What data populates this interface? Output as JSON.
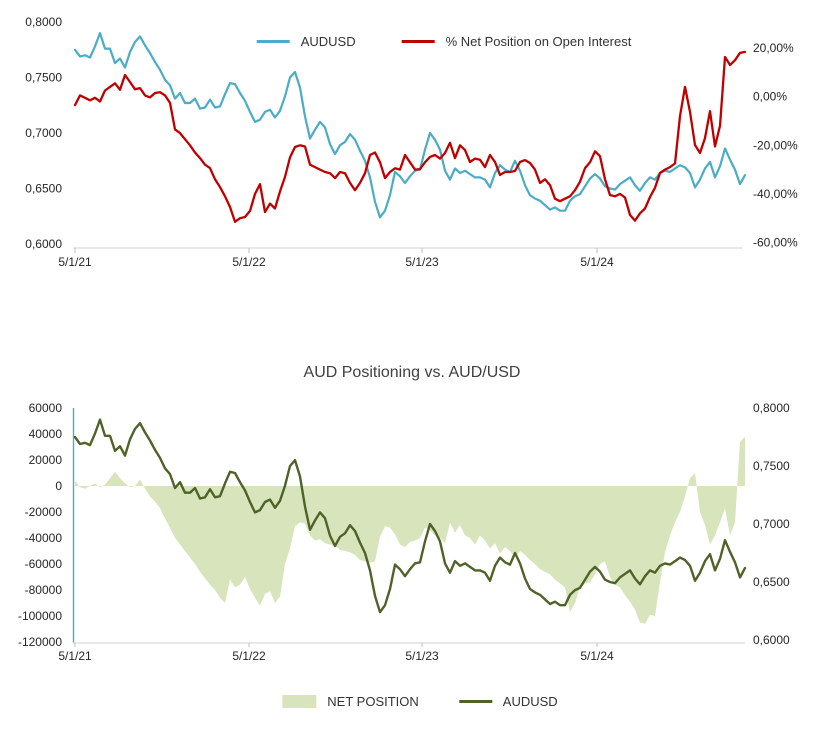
{
  "style": {
    "background": "#FFFFFF",
    "axis_line": "#D9D9D9",
    "tick": "#BFBFBF",
    "text": "#262626",
    "title_color": "#404040",
    "audusd_blue": "#4BACC6",
    "pct_red": "#C00000",
    "audusd_olive": "#4F6228",
    "net_area_green": "#D7E4BC"
  },
  "chart_data": [
    {
      "type": "line",
      "title": "",
      "legend_position": "top",
      "x_ticks": [
        "5/1/21",
        "5/1/22",
        "5/1/23",
        "5/1/24"
      ],
      "left_axis": {
        "ticks": [
          "0,8000",
          "0,7500",
          "0,7000",
          "0,6500",
          "0,6000"
        ],
        "range": [
          0.6,
          0.8
        ],
        "grid": false
      },
      "right_axis": {
        "ticks": [
          "20,00%",
          "0,00%",
          "-20,00%",
          "-40,00%",
          "-60,00%"
        ],
        "range": [
          -60,
          20
        ]
      },
      "series": [
        {
          "name": "AUDUSD",
          "axis": "left",
          "color": "#4BACC6",
          "values": [
            0.775,
            0.769,
            0.77,
            0.768,
            0.778,
            0.79,
            0.776,
            0.776,
            0.763,
            0.767,
            0.759,
            0.773,
            0.782,
            0.787,
            0.779,
            0.772,
            0.764,
            0.757,
            0.748,
            0.743,
            0.731,
            0.736,
            0.727,
            0.727,
            0.731,
            0.722,
            0.723,
            0.73,
            0.723,
            0.724,
            0.735,
            0.745,
            0.744,
            0.736,
            0.729,
            0.719,
            0.71,
            0.712,
            0.719,
            0.721,
            0.714,
            0.72,
            0.733,
            0.75,
            0.755,
            0.741,
            0.715,
            0.695,
            0.703,
            0.71,
            0.705,
            0.69,
            0.681,
            0.689,
            0.692,
            0.699,
            0.694,
            0.684,
            0.675,
            0.66,
            0.638,
            0.624,
            0.63,
            0.644,
            0.665,
            0.661,
            0.655,
            0.661,
            0.666,
            0.667,
            0.685,
            0.7,
            0.694,
            0.685,
            0.666,
            0.658,
            0.668,
            0.664,
            0.666,
            0.663,
            0.66,
            0.66,
            0.658,
            0.651,
            0.664,
            0.671,
            0.667,
            0.665,
            0.675,
            0.666,
            0.653,
            0.644,
            0.641,
            0.639,
            0.635,
            0.631,
            0.633,
            0.63,
            0.63,
            0.639,
            0.643,
            0.645,
            0.652,
            0.659,
            0.663,
            0.659,
            0.652,
            0.65,
            0.649,
            0.654,
            0.657,
            0.66,
            0.653,
            0.648,
            0.655,
            0.66,
            0.658,
            0.664,
            0.666,
            0.665,
            0.668,
            0.671,
            0.669,
            0.664,
            0.651,
            0.658,
            0.668,
            0.674,
            0.66,
            0.67,
            0.686,
            0.676,
            0.667,
            0.654,
            0.662
          ]
        },
        {
          "name": "% Net Position on Open Interest",
          "axis": "right",
          "color": "#C00000",
          "values": [
            -3.5,
            0.5,
            -0.5,
            -1.5,
            -0.5,
            -2.0,
            2.5,
            4.0,
            5.5,
            2.8,
            8.9,
            6.0,
            3.0,
            3.5,
            0.5,
            -0.3,
            1.5,
            1.8,
            0.5,
            -2.6,
            -13.5,
            -15.0,
            -17.5,
            -20.0,
            -23.0,
            -25.3,
            -28.0,
            -29.4,
            -34.0,
            -37.2,
            -41.0,
            -45.4,
            -51.5,
            -50.0,
            -49.5,
            -47.0,
            -40.0,
            -36.0,
            -47.5,
            -44.0,
            -46.0,
            -39.0,
            -33.0,
            -25.0,
            -20.7,
            -20.0,
            -20.5,
            -28.0,
            -29.0,
            -30.0,
            -31.0,
            -31.5,
            -33.5,
            -31.0,
            -31.5,
            -35.5,
            -38.5,
            -35.5,
            -31.5,
            -24.0,
            -23.0,
            -27.0,
            -33.5,
            -31.0,
            -29.5,
            -30.0,
            -24.0,
            -27.0,
            -30.0,
            -29.8,
            -27.0,
            -24.8,
            -24.0,
            -25.5,
            -23.2,
            -19.0,
            -25.3,
            -20.0,
            -22.0,
            -26.9,
            -25.5,
            -26.0,
            -29.0,
            -24.0,
            -26.9,
            -32.2,
            -31.0,
            -31.0,
            -30.6,
            -26.9,
            -26.1,
            -27.3,
            -30.0,
            -35.5,
            -34.0,
            -36.4,
            -42.0,
            -43.0,
            -42.0,
            -41.0,
            -38.5,
            -35.0,
            -29.4,
            -27.0,
            -22.5,
            -24.5,
            -34.0,
            -40.5,
            -41.0,
            -40.0,
            -41.5,
            -48.7,
            -51.0,
            -48.0,
            -46.0,
            -41.3,
            -37.5,
            -31.4,
            -30.0,
            -29.0,
            -27.5,
            -8.0,
            4.0,
            -6.3,
            -19.9,
            -23.2,
            -17.0,
            -6.0,
            -20.5,
            -12.0,
            16.3,
            13.0,
            15.0,
            18.0,
            18.4
          ]
        }
      ]
    },
    {
      "type": "area",
      "title": "AUD Positioning vs. AUD/USD",
      "legend_position": "bottom",
      "x_ticks": [
        "5/1/21",
        "5/1/22",
        "5/1/23",
        "5/1/24"
      ],
      "left_axis": {
        "ticks": [
          "60000",
          "40000",
          "20000",
          "0",
          "-20000",
          "-40000",
          "-60000",
          "-80000",
          "-100000",
          "-120000"
        ],
        "range": [
          -120000,
          60000
        ],
        "grid": false
      },
      "right_axis": {
        "ticks": [
          "0,8000",
          "0,7500",
          "0,7000",
          "0,6500",
          "0,6000"
        ],
        "range": [
          0.6,
          0.8
        ]
      },
      "series": [
        {
          "name": "NET POSITION",
          "type": "area",
          "axis": "left",
          "color": "#D7E4BC",
          "values": [
            4000,
            -1000,
            -2000,
            0,
            2000,
            -1000,
            1000,
            6000,
            11000,
            6000,
            2000,
            -1000,
            0,
            5000,
            -2000,
            -8000,
            -12000,
            -17000,
            -25000,
            -32000,
            -40000,
            -45000,
            -50000,
            -55000,
            -60000,
            -66000,
            -71000,
            -76000,
            -80000,
            -86000,
            -90000,
            -72000,
            -78000,
            -76000,
            -70000,
            -79000,
            -86000,
            -92000,
            -83000,
            -81000,
            -90000,
            -85000,
            -60000,
            -48000,
            -31000,
            -28000,
            -29000,
            -38000,
            -42000,
            -41000,
            -44000,
            -45000,
            -46000,
            -49000,
            -50000,
            -51000,
            -53000,
            -57000,
            -58000,
            -59000,
            -58000,
            -39000,
            -31000,
            -32000,
            -37000,
            -45000,
            -47000,
            -43000,
            -42000,
            -40000,
            -32000,
            -34000,
            -38000,
            -40000,
            -44000,
            -28000,
            -36000,
            -30000,
            -38000,
            -40000,
            -45000,
            -38000,
            -42000,
            -48000,
            -44000,
            -52000,
            -47000,
            -50000,
            -55000,
            -50000,
            -53000,
            -57000,
            -60000,
            -64000,
            -66000,
            -68000,
            -72000,
            -75000,
            -78000,
            -97000,
            -90000,
            -78000,
            -75000,
            -74000,
            -68000,
            -60000,
            -58000,
            -70000,
            -76000,
            -78000,
            -84000,
            -89000,
            -95000,
            -105000,
            -106000,
            -99000,
            -100000,
            -74000,
            -51000,
            -38000,
            -28000,
            -20000,
            -8000,
            6000,
            10000,
            -20000,
            -30000,
            -45000,
            -38000,
            -28000,
            -17000,
            -38000,
            -28000,
            34000,
            38000
          ]
        },
        {
          "name": "AUDUSD",
          "type": "line",
          "axis": "right",
          "color": "#4F6228",
          "values": [
            0.775,
            0.769,
            0.77,
            0.768,
            0.778,
            0.79,
            0.776,
            0.776,
            0.763,
            0.767,
            0.759,
            0.773,
            0.782,
            0.787,
            0.779,
            0.772,
            0.764,
            0.757,
            0.748,
            0.743,
            0.731,
            0.736,
            0.727,
            0.727,
            0.731,
            0.722,
            0.723,
            0.73,
            0.723,
            0.724,
            0.735,
            0.745,
            0.744,
            0.736,
            0.729,
            0.719,
            0.71,
            0.712,
            0.719,
            0.721,
            0.714,
            0.72,
            0.733,
            0.75,
            0.755,
            0.741,
            0.715,
            0.695,
            0.703,
            0.71,
            0.705,
            0.69,
            0.681,
            0.689,
            0.692,
            0.699,
            0.694,
            0.684,
            0.675,
            0.66,
            0.638,
            0.624,
            0.63,
            0.644,
            0.665,
            0.661,
            0.655,
            0.661,
            0.666,
            0.667,
            0.685,
            0.7,
            0.694,
            0.685,
            0.666,
            0.658,
            0.668,
            0.664,
            0.666,
            0.663,
            0.66,
            0.66,
            0.658,
            0.651,
            0.664,
            0.671,
            0.667,
            0.665,
            0.675,
            0.666,
            0.653,
            0.644,
            0.641,
            0.639,
            0.635,
            0.631,
            0.633,
            0.63,
            0.63,
            0.639,
            0.643,
            0.645,
            0.652,
            0.659,
            0.663,
            0.659,
            0.652,
            0.65,
            0.649,
            0.654,
            0.657,
            0.66,
            0.653,
            0.648,
            0.655,
            0.66,
            0.658,
            0.664,
            0.666,
            0.665,
            0.668,
            0.671,
            0.669,
            0.664,
            0.651,
            0.658,
            0.668,
            0.674,
            0.66,
            0.67,
            0.686,
            0.676,
            0.667,
            0.654,
            0.662
          ]
        }
      ]
    }
  ]
}
